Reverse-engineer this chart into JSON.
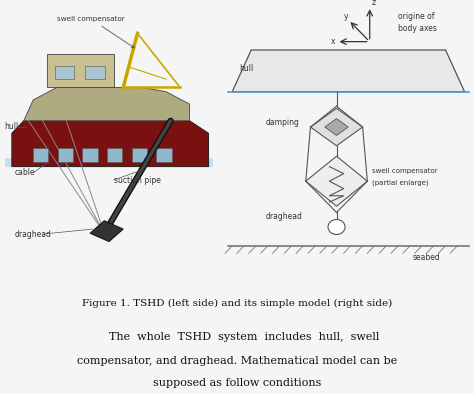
{
  "fig_width": 4.74,
  "fig_height": 3.94,
  "dpi": 100,
  "bg_color": "#f5f5f5",
  "caption": "Figure 1. TSHD (left side) and its simple model (right side)",
  "caption_fontsize": 7.5,
  "body_line1": "    The  whole  TSHD  system  includes  hull,  swell",
  "body_line2": "compensator, and draghead. Mathematical model can be",
  "body_line3": "supposed as follow conditions",
  "body_fontsize": 8.0,
  "lc": "#555555",
  "dark": "#333333",
  "light": "#cccccc"
}
